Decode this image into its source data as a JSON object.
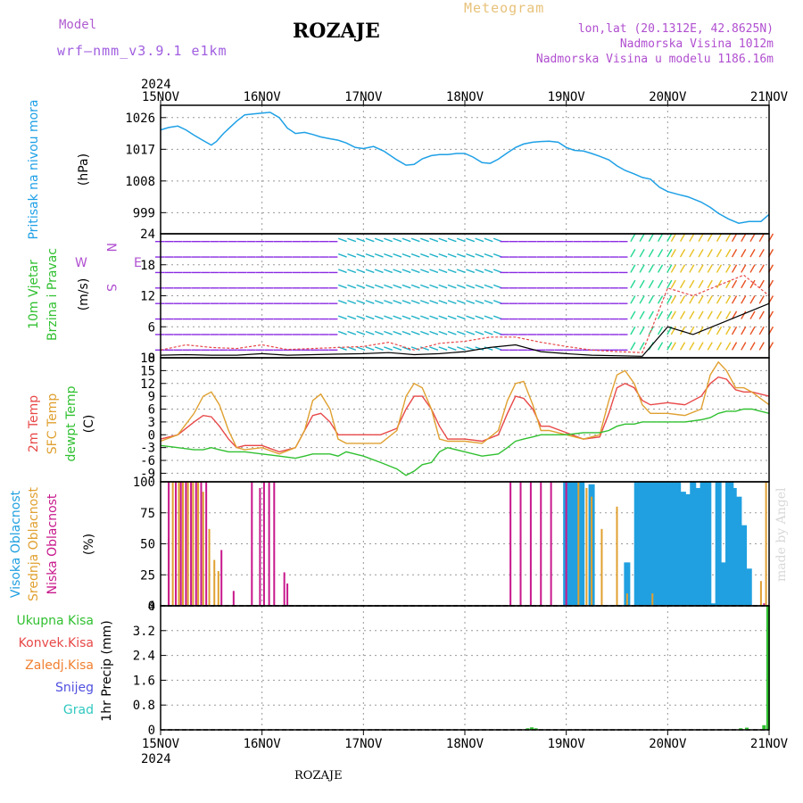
{
  "header": {
    "title": "ROZAJE",
    "meteogram": "Meteogram",
    "model_label": "Model",
    "model_name": "wrf–nmm_v3.9.1  e1km",
    "info_lines": [
      "lon,lat (20.1312E, 42.8625N)",
      "Nadmorska Visina 1012m",
      "Nadmorska Visina u modelu 1186.16m"
    ],
    "bottom_station": "ROZAJE",
    "credit": "made by Angel"
  },
  "colors": {
    "pressure": "#1ea0e6",
    "temp2m": "#e84848",
    "sfc_temp": "#e0a030",
    "dewpt": "#30c030",
    "high_cloud": "#20a0e0",
    "mid_cloud": "#e0a030",
    "low_cloud": "#c8188c",
    "gust": "#e84848",
    "wind_speed": "#000000",
    "precip_total": "#30c030"
  },
  "chart_data": [
    {
      "type": "line",
      "panel": "pressure",
      "axis_year": "2024",
      "x_tick_labels": [
        "15NOV",
        "16NOV",
        "17NOV",
        "18NOV",
        "19NOV",
        "20NOV",
        "21NOV"
      ],
      "ylabel_left": "Pritisak na nivou mora",
      "ylabel": "(hPa)",
      "yticks": [
        "999",
        "1008",
        "1017",
        "1026"
      ],
      "ylim": [
        993,
        1029.5
      ],
      "x_days": [
        0,
        0.08,
        0.17,
        0.25,
        0.33,
        0.42,
        0.5,
        0.55,
        0.62,
        0.75,
        0.83,
        0.9,
        1.0,
        1.08,
        1.17,
        1.25,
        1.33,
        1.42,
        1.5,
        1.58,
        1.67,
        1.75,
        1.83,
        1.92,
        2.0,
        2.1,
        2.2,
        2.33,
        2.42,
        2.5,
        2.58,
        2.67,
        2.75,
        2.83,
        2.92,
        3.0,
        3.08,
        3.17,
        3.25,
        3.33,
        3.42,
        3.5,
        3.58,
        3.67,
        3.75,
        3.83,
        3.92,
        4.0,
        4.08,
        4.17,
        4.25,
        4.33,
        4.42,
        4.5,
        4.58,
        4.67,
        4.75,
        4.83,
        4.92,
        5.0,
        5.1,
        5.2,
        5.33,
        5.42,
        5.5,
        5.6,
        5.7,
        5.8,
        5.92,
        6.0
      ],
      "values": [
        1022.5,
        1023.2,
        1023.6,
        1022.5,
        1021.0,
        1019.5,
        1018.2,
        1019.2,
        1021.5,
        1025.0,
        1026.8,
        1027.0,
        1027.3,
        1027.5,
        1026.0,
        1023.0,
        1021.5,
        1021.8,
        1021.2,
        1020.5,
        1020.0,
        1019.6,
        1018.8,
        1017.5,
        1017.2,
        1017.8,
        1016.5,
        1014.0,
        1012.5,
        1012.7,
        1014.3,
        1015.2,
        1015.5,
        1015.5,
        1015.8,
        1015.8,
        1014.8,
        1013.2,
        1013.0,
        1014.2,
        1016.0,
        1017.5,
        1018.5,
        1019.0,
        1019.2,
        1019.3,
        1019.0,
        1017.5,
        1016.7,
        1016.5,
        1015.8,
        1015.0,
        1014.0,
        1012.3,
        1011.0,
        1010.0,
        1009.0,
        1008.5,
        1006.2,
        1005.0,
        1004.2,
        1003.5,
        1002.0,
        1000.5,
        998.8,
        997.2,
        996.0,
        996.5,
        996.5,
        998.5
      ]
    },
    {
      "type": "line",
      "panel": "wind",
      "ylabel_left": [
        "10m Vjetar",
        "Brzina i Pravac"
      ],
      "ylabel": "(m/s)",
      "direction_key": [
        "W",
        "S",
        "E",
        "N"
      ],
      "yticks": [
        "0",
        "6",
        "12",
        "18",
        "24"
      ],
      "ylim": [
        0,
        24
      ],
      "x_days": [
        0,
        0.25,
        0.5,
        0.75,
        1.0,
        1.25,
        1.5,
        1.75,
        2.0,
        2.25,
        2.5,
        2.75,
        3.0,
        3.25,
        3.5,
        3.75,
        4.0,
        4.25,
        4.5,
        4.75,
        5.0,
        5.25,
        5.5,
        5.75,
        6.0
      ],
      "series": [
        {
          "role": "gust",
          "values": [
            1.5,
            2.5,
            2.0,
            1.8,
            2.5,
            1.6,
            1.8,
            2.0,
            2.2,
            3.0,
            1.5,
            2.8,
            3.2,
            4.0,
            4.0,
            3.0,
            2.2,
            1.5,
            1.2,
            1.0,
            13.5,
            12.0,
            14.0,
            16.0,
            12.0
          ]
        },
        {
          "role": "speed",
          "values": [
            0.5,
            0.6,
            0.5,
            0.5,
            0.8,
            0.5,
            0.6,
            0.7,
            0.8,
            1.0,
            0.6,
            0.8,
            1.2,
            2.0,
            2.5,
            1.2,
            0.8,
            0.5,
            0.4,
            0.3,
            6.0,
            4.5,
            6.5,
            8.5,
            10.5
          ]
        }
      ],
      "barb_bands": [
        {
          "from_day": 0,
          "to_day": 1.8,
          "color": "#8a2be2"
        },
        {
          "from_day": 1.8,
          "to_day": 3.4,
          "color": "#20b2c8"
        },
        {
          "from_day": 3.4,
          "to_day": 4.6,
          "color": "#8a2be2"
        },
        {
          "from_day": 4.6,
          "to_day": 5.0,
          "color": "#20d890"
        },
        {
          "from_day": 5.0,
          "to_day": 5.6,
          "color": "#e8c020"
        },
        {
          "from_day": 5.6,
          "to_day": 6.0,
          "color": "#e85020"
        }
      ]
    },
    {
      "type": "line",
      "panel": "temperature",
      "ylabel_left": [
        "2m Temp",
        "SFC Temp",
        "dewpt Temp"
      ],
      "ylabel": "(C)",
      "yticks": [
        "-9",
        "-6",
        "-3",
        "0",
        "3",
        "6",
        "9",
        "12",
        "15",
        "18"
      ],
      "ylim": [
        -11,
        18
      ],
      "x_days": [
        0,
        0.17,
        0.33,
        0.42,
        0.5,
        0.58,
        0.67,
        0.75,
        0.83,
        1.0,
        1.17,
        1.33,
        1.42,
        1.5,
        1.58,
        1.67,
        1.75,
        1.83,
        2.0,
        2.17,
        2.33,
        2.42,
        2.5,
        2.58,
        2.67,
        2.75,
        2.83,
        3.0,
        3.17,
        3.33,
        3.42,
        3.5,
        3.58,
        3.67,
        3.75,
        3.83,
        4.0,
        4.17,
        4.33,
        4.42,
        4.5,
        4.58,
        4.67,
        4.75,
        4.83,
        5.0,
        5.17,
        5.33,
        5.42,
        5.5,
        5.58,
        5.67,
        5.75,
        5.83,
        6.0
      ],
      "series": [
        {
          "name": "2m Temp",
          "values": [
            -1,
            0,
            3,
            4.5,
            4.2,
            2,
            -1,
            -3,
            -2.5,
            -2.5,
            -4,
            -3,
            1,
            4.5,
            5,
            3,
            0,
            0,
            0,
            0,
            1.5,
            6,
            9,
            9,
            6,
            2,
            -1,
            -1,
            -1.5,
            0,
            5,
            9,
            8.5,
            6,
            2,
            2,
            0.5,
            -1,
            -0.5,
            5,
            11,
            12,
            11,
            8,
            7,
            7.5,
            7,
            9,
            12,
            13.5,
            13,
            10.5,
            10,
            10,
            9
          ]
        },
        {
          "name": "SFC Temp",
          "values": [
            -1.5,
            0,
            5,
            9,
            10,
            7,
            1,
            -3,
            -3.5,
            -3,
            -4.5,
            -3,
            1,
            8,
            9.5,
            6,
            -1,
            -2,
            -2,
            -2,
            1,
            9,
            12,
            11,
            6,
            -1,
            -1.5,
            -1.5,
            -2,
            1,
            8,
            12,
            12.5,
            7,
            1,
            1,
            0,
            -1,
            0,
            8,
            14,
            15,
            12,
            7,
            5,
            5,
            4.5,
            6,
            14,
            17,
            15,
            11,
            11,
            10,
            7
          ]
        },
        {
          "name": "dewpt Temp",
          "values": [
            -2.5,
            -3,
            -3.5,
            -3.5,
            -3,
            -3.5,
            -4,
            -4,
            -4,
            -4.5,
            -5,
            -5.5,
            -5,
            -4.5,
            -4.5,
            -4.5,
            -5,
            -4,
            -5,
            -6.5,
            -8,
            -9.5,
            -8.5,
            -7,
            -6.5,
            -4,
            -3,
            -4,
            -5,
            -4.5,
            -3,
            -1.5,
            -1,
            -0.5,
            0,
            0,
            0,
            0.5,
            0.5,
            1,
            2,
            2.5,
            2.5,
            3,
            3,
            3,
            3,
            3.5,
            4,
            5,
            5.5,
            5.5,
            6,
            6,
            5
          ]
        }
      ]
    },
    {
      "type": "bar",
      "panel": "clouds",
      "ylabel_left": [
        "Visoka Oblacnost",
        "Srednja Oblacnost",
        "Niska Oblacnost"
      ],
      "ylabel": "(%)",
      "yticks": [
        "0",
        "25",
        "50",
        "75",
        "100"
      ],
      "ylim": [
        0,
        100
      ],
      "series": [
        {
          "name": "Visoka Oblacnost",
          "x_days": [
            4.0,
            4.05,
            4.1,
            4.15,
            4.25,
            4.6,
            4.7,
            4.75,
            4.8,
            4.85,
            4.9,
            4.95,
            5.0,
            5.05,
            5.1,
            5.15,
            5.2,
            5.25,
            5.3,
            5.35,
            5.4,
            5.45,
            5.5,
            5.55,
            5.6,
            5.62,
            5.65,
            5.7,
            5.75,
            5.8
          ],
          "values": [
            100,
            100,
            100,
            100,
            98,
            35,
            100,
            100,
            100,
            100,
            100,
            100,
            100,
            100,
            100,
            92,
            90,
            100,
            95,
            100,
            100,
            2,
            100,
            35,
            100,
            100,
            95,
            88,
            65,
            30
          ]
        },
        {
          "name": "Srednja Oblacnost",
          "x_days": [
            0.08,
            0.12,
            0.18,
            0.22,
            0.27,
            0.32,
            0.37,
            0.42,
            0.48,
            0.53,
            0.57,
            4.12,
            4.2,
            4.25,
            4.35,
            4.5,
            4.6,
            4.85,
            5.92,
            5.97
          ],
          "values": [
            55,
            100,
            100,
            100,
            100,
            100,
            100,
            92,
            62,
            37,
            28,
            100,
            95,
            88,
            62,
            80,
            10,
            10,
            20,
            100
          ]
        },
        {
          "name": "Niska Oblacnost",
          "x_days": [
            0.08,
            0.15,
            0.2,
            0.25,
            0.3,
            0.35,
            0.4,
            0.45,
            0.6,
            0.72,
            0.9,
            0.98,
            1.02,
            1.07,
            1.12,
            1.22,
            1.25,
            3.45,
            3.55,
            3.65,
            3.75,
            3.85,
            4.0,
            5.95
          ],
          "values": [
            100,
            100,
            100,
            100,
            100,
            100,
            100,
            100,
            45,
            12,
            100,
            95,
            100,
            100,
            100,
            27,
            18,
            100,
            100,
            100,
            100,
            100,
            100,
            2
          ]
        }
      ]
    },
    {
      "type": "bar",
      "panel": "precipitation",
      "ylabel_left": [
        "Ukupna Kisa",
        "Konvek.Kisa",
        "Zaledj.Kisa",
        "Snijeg",
        "Grad"
      ],
      "ylabel": "1hr Precip (mm)",
      "yticks": [
        "0",
        "0.8",
        "1.6",
        "2.4",
        "3.2",
        "4"
      ],
      "ylim": [
        0,
        4
      ],
      "x_days": [
        3.62,
        3.66,
        3.7,
        5.72,
        5.78,
        5.95,
        5.99
      ],
      "values": [
        0.05,
        0.08,
        0.05,
        0.05,
        0.07,
        0.15,
        4.0
      ]
    }
  ]
}
